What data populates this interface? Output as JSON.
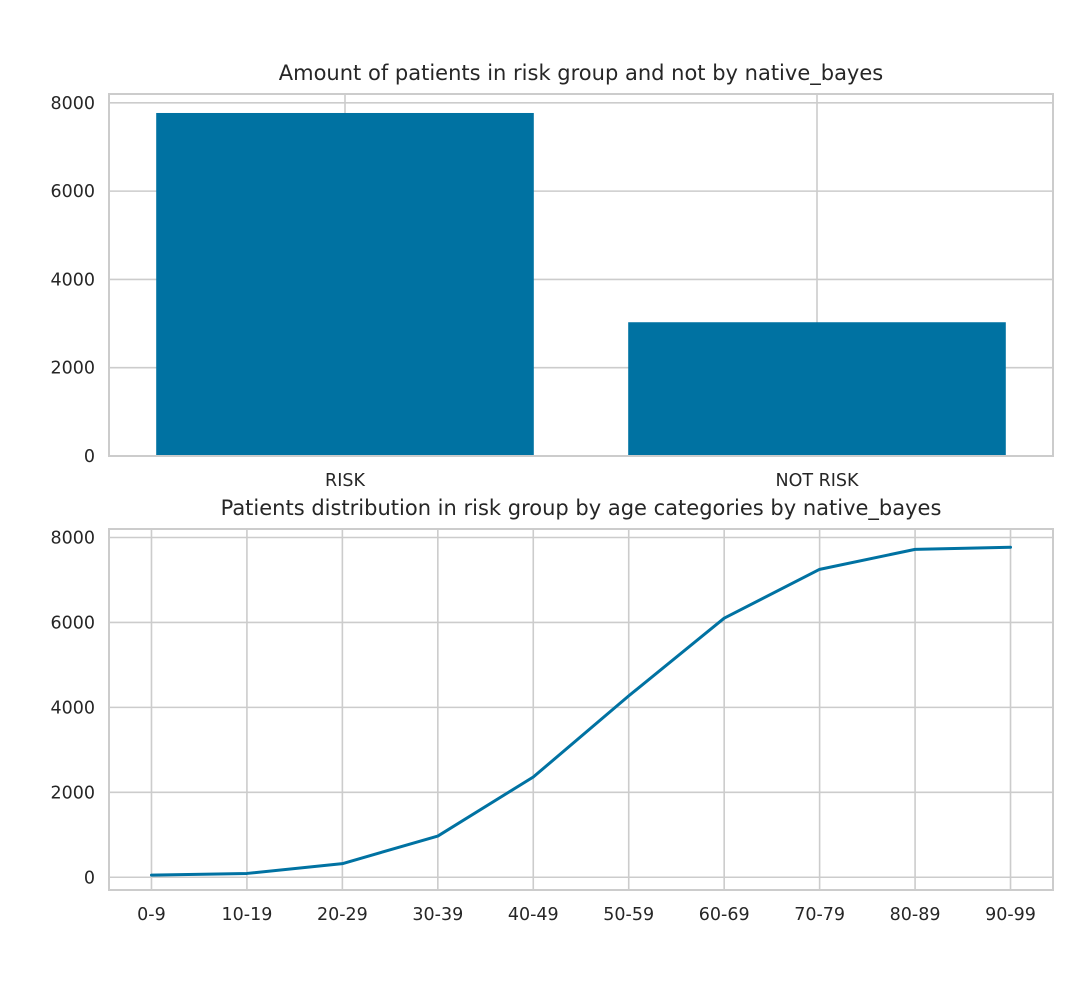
{
  "chart_data": [
    {
      "type": "bar",
      "title": "Amount of patients in risk group and not by native_bayes",
      "xlabel": "",
      "ylabel": "",
      "categories": [
        "RISK",
        "NOT RISK"
      ],
      "values": [
        7770,
        3030
      ],
      "ylim": [
        0,
        8200
      ],
      "yticks": [
        0,
        2000,
        4000,
        6000,
        8000
      ],
      "grid": true,
      "color": "#0072a2"
    },
    {
      "type": "line",
      "title": "Patients distribution in risk group by age categories by native_bayes",
      "xlabel": "",
      "ylabel": "",
      "categories": [
        "0-9",
        "10-19",
        "20-29",
        "30-39",
        "40-49",
        "50-59",
        "60-69",
        "70-79",
        "80-89",
        "90-99"
      ],
      "values": [
        50,
        90,
        320,
        970,
        2360,
        4270,
        6100,
        7250,
        7720,
        7770
      ],
      "ylim": [
        -300,
        8200
      ],
      "yticks": [
        0,
        2000,
        4000,
        6000,
        8000
      ],
      "grid": true,
      "color": "#0072a2"
    }
  ]
}
